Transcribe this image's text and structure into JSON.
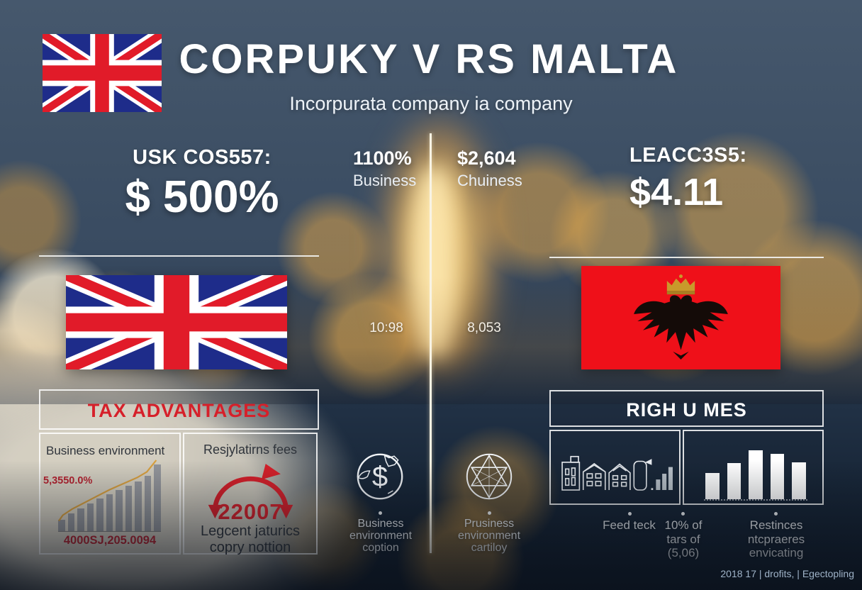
{
  "header": {
    "title": "CORPUKY V RS MALTA",
    "subtitle": "Incorpurata company ia company"
  },
  "stats": {
    "uk_label": "USK COS557:",
    "uk_value": "$ 500%",
    "col1_value": "1100%",
    "col1_label": "Business",
    "col1_number": "10:98",
    "col2_value": "$2,604",
    "col2_label": "Chuiness",
    "col2_number": "8,053",
    "malta_label": "LEACC3S5:",
    "malta_value": "$4.11"
  },
  "tax": {
    "title": "TAX ADVANTAGES",
    "env_title": "Business environment",
    "env_left_label": "5,3550.0%",
    "env_bottom_label": "4000SJ,205.0094",
    "fees_title": "Resjylatirns fees",
    "fees_value": "22007",
    "fees_caption1": "Legcent jaturics",
    "fees_caption2": "copry nottion"
  },
  "features": {
    "globe_caption": "Business environment coption",
    "star_caption": "Prusiness environment cartiloy"
  },
  "rights": {
    "title": "RIGH U MES",
    "caption1": "Feed teck",
    "caption2": "10% of tars of (5,06)",
    "caption3": "Restinces ntcpraeres envicating"
  },
  "footer": {
    "credit": "2018 17 | drofits, | Egectopling"
  },
  "icons": {
    "top_left_flag": "uk-flag-icon",
    "left_flag": "uk-flag-icon",
    "right_flag": "red-eagle-flag-icon",
    "globe": "globe-dollar-icon",
    "star": "star-geometry-icon",
    "buildings": "buildings-and-bars-icon",
    "arrows": "circular-down-arrows-icon",
    "globe_symbol": "$"
  },
  "colors": {
    "accent_red": "#d6202a",
    "dark_label": "#2f343b",
    "flag_red": "#ef1019",
    "crown_gold": "#c9992b",
    "bar_gray": "#8b8e96",
    "line_orange": "#d9a03f",
    "bar_white": "#ffffff"
  },
  "chart_data": [
    {
      "id": "tax-bars",
      "type": "bar",
      "title": "Business environment",
      "values": [
        17,
        26,
        33,
        40,
        47,
        54,
        60,
        66,
        72,
        80,
        97
      ],
      "ylim": [
        0,
        100
      ],
      "bar_color": "#8b8e96",
      "line_overlay": true,
      "line_color": "#d9a03f",
      "annotations": [
        "5,3550.0%",
        "4000SJ,205.0094"
      ],
      "axes": "none",
      "legend": "none"
    },
    {
      "id": "rights-bars",
      "type": "bar",
      "title": "Restinces ntcpraeres envicating",
      "values": [
        43,
        59,
        80,
        74,
        61
      ],
      "ylim": [
        0,
        100
      ],
      "bar_color": "#ffffff",
      "axes": "none",
      "legend": "none"
    }
  ]
}
